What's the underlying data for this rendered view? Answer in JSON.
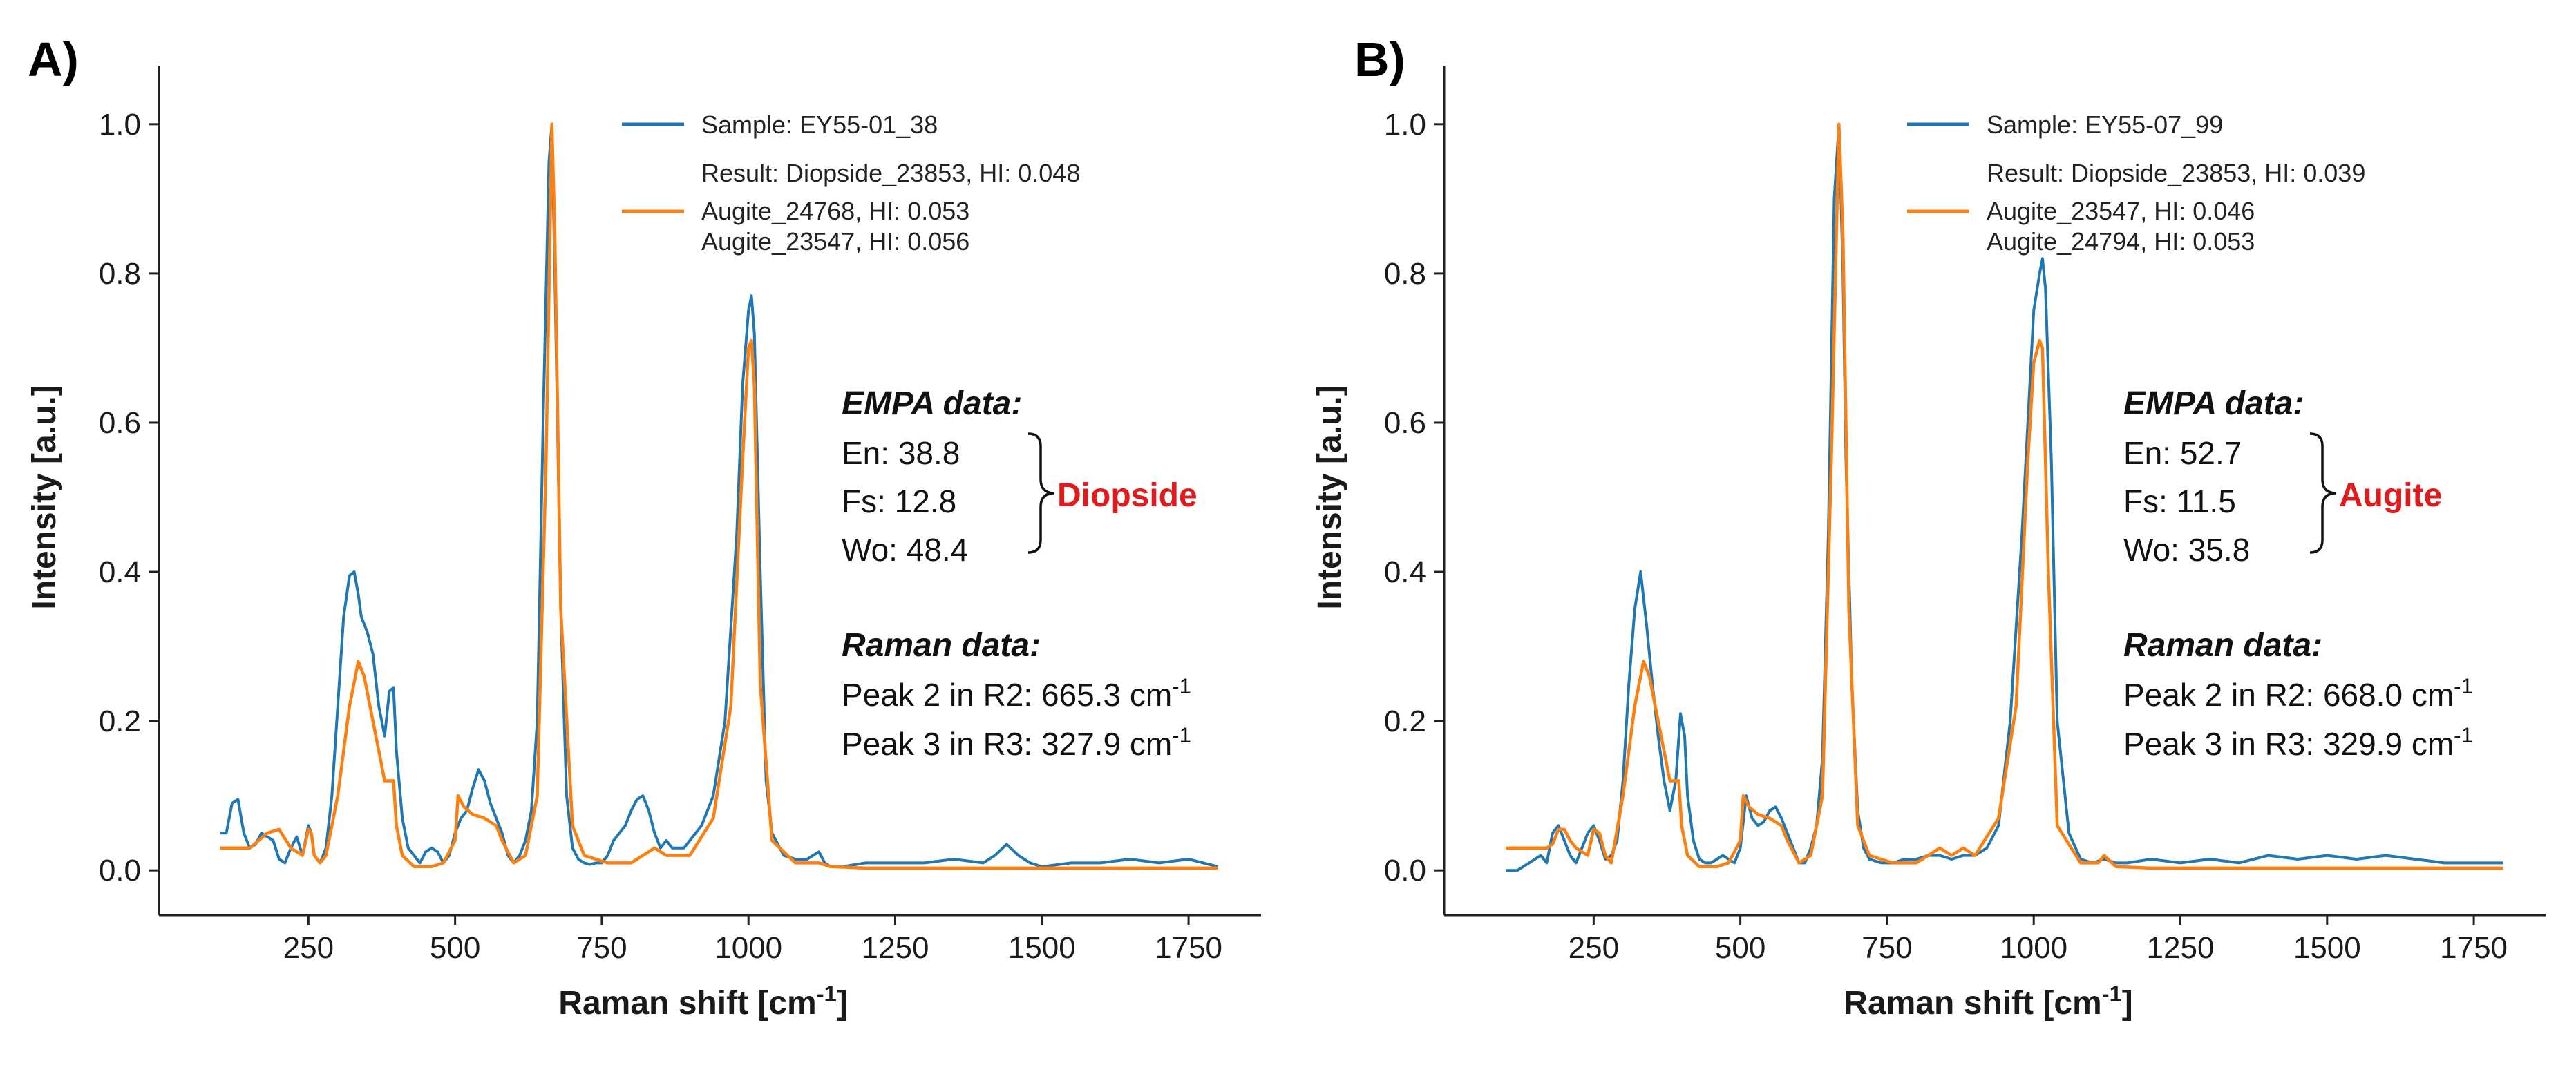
{
  "colors": {
    "sample": "#1f77b4",
    "reference": "#ff7f0e",
    "mineral_label": "#e31a1c"
  },
  "chart_data": [
    {
      "type": "line",
      "panel_label": "A)",
      "xlabel": "Raman shift [cm",
      "xlabel_sup": "-1",
      "xlabel_end": "]",
      "ylabel": "Intensity [a.u.]",
      "xlim": [
        60,
        1850
      ],
      "ylim": [
        -0.06,
        1.06
      ],
      "xticks": [
        250,
        500,
        750,
        1000,
        1250,
        1500,
        1750
      ],
      "xtick_labels": [
        "250",
        "500",
        "750",
        "1000",
        "1250",
        "1500",
        "1750"
      ],
      "yticks": [
        0.0,
        0.2,
        0.4,
        0.6,
        0.8,
        1.0
      ],
      "ytick_labels": [
        "0.0",
        "0.2",
        "0.4",
        "0.6",
        "0.8",
        "1.0"
      ],
      "legend": {
        "sample": "Sample: EY55-01_38",
        "result_line1": "Result: Diopside_23853, HI: 0.048",
        "result_line2": "Augite_24768, HI: 0.053",
        "result_line3": "Augite_23547, HI: 0.056"
      },
      "annotation": {
        "empa_title": "EMPA data:",
        "en": "En:  38.8",
        "fs": "Fs:  12.8",
        "wo": "Wo: 48.4",
        "mineral": "Diopside",
        "raman_title": "Raman data:",
        "peak2": "Peak 2 in R2: 665.3 cm",
        "peak3": "Peak 3 in R3: 327.9 cm",
        "unit_sup": "-1"
      },
      "series": [
        {
          "name": "Sample: EY55-01_38",
          "color_key": "sample",
          "x": [
            100,
            110,
            120,
            130,
            140,
            150,
            160,
            170,
            180,
            190,
            200,
            210,
            220,
            230,
            240,
            250,
            255,
            260,
            270,
            280,
            290,
            300,
            310,
            320,
            328,
            335,
            340,
            350,
            360,
            370,
            380,
            388,
            395,
            400,
            410,
            420,
            430,
            440,
            450,
            460,
            470,
            480,
            490,
            500,
            510,
            520,
            530,
            540,
            550,
            560,
            570,
            580,
            590,
            600,
            610,
            620,
            630,
            640,
            650,
            660,
            665,
            670,
            680,
            690,
            700,
            710,
            720,
            730,
            740,
            750,
            760,
            770,
            780,
            790,
            800,
            810,
            820,
            830,
            840,
            850,
            860,
            870,
            880,
            890,
            900,
            920,
            940,
            960,
            980,
            990,
            1000,
            1005,
            1010,
            1020,
            1030,
            1040,
            1060,
            1080,
            1100,
            1110,
            1120,
            1130,
            1140,
            1160,
            1200,
            1250,
            1300,
            1350,
            1400,
            1420,
            1440,
            1460,
            1480,
            1500,
            1550,
            1600,
            1650,
            1700,
            1750,
            1800
          ],
          "y": [
            0.05,
            0.05,
            0.09,
            0.095,
            0.05,
            0.03,
            0.035,
            0.05,
            0.045,
            0.04,
            0.015,
            0.01,
            0.03,
            0.045,
            0.02,
            0.06,
            0.05,
            0.02,
            0.01,
            0.03,
            0.1,
            0.22,
            0.34,
            0.395,
            0.4,
            0.37,
            0.34,
            0.32,
            0.29,
            0.22,
            0.18,
            0.24,
            0.245,
            0.16,
            0.07,
            0.03,
            0.02,
            0.01,
            0.025,
            0.03,
            0.025,
            0.01,
            0.02,
            0.05,
            0.07,
            0.08,
            0.11,
            0.135,
            0.12,
            0.09,
            0.07,
            0.05,
            0.02,
            0.01,
            0.02,
            0.04,
            0.08,
            0.2,
            0.6,
            0.95,
            1.0,
            0.8,
            0.35,
            0.1,
            0.03,
            0.015,
            0.01,
            0.008,
            0.01,
            0.01,
            0.02,
            0.04,
            0.05,
            0.06,
            0.08,
            0.095,
            0.1,
            0.08,
            0.05,
            0.03,
            0.04,
            0.03,
            0.03,
            0.03,
            0.04,
            0.06,
            0.1,
            0.2,
            0.45,
            0.65,
            0.75,
            0.77,
            0.72,
            0.4,
            0.12,
            0.05,
            0.02,
            0.015,
            0.015,
            0.02,
            0.025,
            0.01,
            0.005,
            0.005,
            0.01,
            0.01,
            0.01,
            0.015,
            0.01,
            0.02,
            0.035,
            0.02,
            0.01,
            0.005,
            0.01,
            0.01,
            0.015,
            0.01,
            0.015,
            0.005
          ]
        },
        {
          "name": "Diopside_23853",
          "color_key": "reference",
          "x": [
            100,
            150,
            180,
            200,
            220,
            240,
            250,
            255,
            260,
            270,
            280,
            300,
            320,
            335,
            345,
            360,
            380,
            395,
            400,
            410,
            430,
            460,
            480,
            500,
            505,
            515,
            530,
            550,
            570,
            580,
            600,
            620,
            640,
            655,
            665,
            670,
            680,
            700,
            720,
            760,
            800,
            820,
            840,
            860,
            880,
            900,
            940,
            970,
            990,
            1000,
            1005,
            1010,
            1020,
            1040,
            1080,
            1120,
            1140,
            1200,
            1400,
            1800
          ],
          "y": [
            0.03,
            0.03,
            0.05,
            0.055,
            0.03,
            0.02,
            0.055,
            0.05,
            0.02,
            0.01,
            0.02,
            0.1,
            0.22,
            0.28,
            0.26,
            0.2,
            0.12,
            0.12,
            0.06,
            0.02,
            0.005,
            0.005,
            0.01,
            0.04,
            0.1,
            0.085,
            0.075,
            0.07,
            0.06,
            0.04,
            0.01,
            0.02,
            0.1,
            0.55,
            1.0,
            0.85,
            0.35,
            0.06,
            0.02,
            0.01,
            0.01,
            0.02,
            0.03,
            0.02,
            0.02,
            0.02,
            0.07,
            0.22,
            0.55,
            0.7,
            0.71,
            0.65,
            0.25,
            0.04,
            0.01,
            0.01,
            0.005,
            0.003,
            0.003,
            0.003
          ]
        }
      ]
    },
    {
      "type": "line",
      "panel_label": "B)",
      "xlabel": "Raman shift [cm",
      "xlabel_sup": "-1",
      "xlabel_end": "]",
      "ylabel": "Intensity [a.u.]",
      "xlim": [
        60,
        1850
      ],
      "ylim": [
        -0.06,
        1.06
      ],
      "xticks": [
        250,
        500,
        750,
        1000,
        1250,
        1500,
        1750
      ],
      "xtick_labels": [
        "250",
        "500",
        "750",
        "1000",
        "1250",
        "1500",
        "1750"
      ],
      "yticks": [
        0.0,
        0.2,
        0.4,
        0.6,
        0.8,
        1.0
      ],
      "ytick_labels": [
        "0.0",
        "0.2",
        "0.4",
        "0.6",
        "0.8",
        "1.0"
      ],
      "legend": {
        "sample": "Sample: EY55-07_99",
        "result_line1": "Result: Diopside_23853, HI: 0.039",
        "result_line2": "Augite_23547, HI: 0.046",
        "result_line3": "Augite_24794, HI: 0.053"
      },
      "annotation": {
        "empa_title": "EMPA data:",
        "en": "En:  52.7",
        "fs": "Fs:  11.5",
        "wo": "Wo: 35.8",
        "mineral": "Augite",
        "raman_title": "Raman data:",
        "peak2": "Peak 2 in R2: 668.0 cm",
        "peak3": "Peak 3 in R3: 329.9 cm",
        "unit_sup": "-1"
      },
      "series": [
        {
          "name": "Sample: EY55-07_99",
          "color_key": "sample",
          "x": [
            100,
            120,
            140,
            160,
            170,
            180,
            190,
            200,
            210,
            220,
            230,
            240,
            250,
            260,
            270,
            280,
            290,
            300,
            310,
            320,
            330,
            340,
            350,
            360,
            370,
            380,
            390,
            398,
            405,
            410,
            420,
            430,
            440,
            450,
            460,
            470,
            480,
            490,
            500,
            510,
            520,
            530,
            540,
            550,
            560,
            570,
            580,
            590,
            600,
            610,
            620,
            630,
            640,
            650,
            660,
            668,
            675,
            680,
            690,
            700,
            710,
            720,
            740,
            760,
            780,
            800,
            820,
            840,
            860,
            880,
            900,
            920,
            940,
            960,
            980,
            990,
            1000,
            1010,
            1015,
            1020,
            1030,
            1040,
            1060,
            1080,
            1100,
            1120,
            1140,
            1160,
            1200,
            1250,
            1300,
            1350,
            1400,
            1450,
            1500,
            1550,
            1600,
            1650,
            1700,
            1750,
            1800
          ],
          "y": [
            0.0,
            0.0,
            0.01,
            0.02,
            0.01,
            0.05,
            0.06,
            0.04,
            0.02,
            0.01,
            0.03,
            0.05,
            0.06,
            0.04,
            0.015,
            0.02,
            0.04,
            0.12,
            0.25,
            0.35,
            0.4,
            0.33,
            0.25,
            0.18,
            0.12,
            0.08,
            0.12,
            0.21,
            0.18,
            0.1,
            0.04,
            0.015,
            0.01,
            0.01,
            0.015,
            0.02,
            0.015,
            0.01,
            0.03,
            0.1,
            0.07,
            0.06,
            0.065,
            0.08,
            0.085,
            0.07,
            0.05,
            0.03,
            0.01,
            0.01,
            0.03,
            0.06,
            0.15,
            0.45,
            0.9,
            1.0,
            0.8,
            0.55,
            0.25,
            0.08,
            0.03,
            0.015,
            0.01,
            0.01,
            0.015,
            0.015,
            0.02,
            0.02,
            0.015,
            0.02,
            0.02,
            0.03,
            0.06,
            0.2,
            0.45,
            0.6,
            0.75,
            0.8,
            0.82,
            0.78,
            0.55,
            0.2,
            0.05,
            0.015,
            0.01,
            0.015,
            0.01,
            0.01,
            0.015,
            0.01,
            0.015,
            0.01,
            0.02,
            0.015,
            0.02,
            0.015,
            0.02,
            0.015,
            0.01,
            0.01,
            0.01
          ]
        },
        {
          "name": "Diopside_23853",
          "color_key": "reference",
          "x": [
            100,
            150,
            170,
            180,
            190,
            200,
            210,
            220,
            240,
            250,
            260,
            270,
            280,
            300,
            320,
            335,
            345,
            360,
            380,
            395,
            400,
            410,
            430,
            460,
            480,
            500,
            505,
            515,
            530,
            550,
            570,
            580,
            600,
            620,
            640,
            655,
            668,
            675,
            685,
            700,
            720,
            760,
            800,
            820,
            840,
            860,
            880,
            900,
            940,
            970,
            990,
            1000,
            1010,
            1015,
            1025,
            1040,
            1080,
            1110,
            1120,
            1140,
            1200,
            1400,
            1800
          ],
          "y": [
            0.03,
            0.03,
            0.03,
            0.035,
            0.055,
            0.055,
            0.04,
            0.03,
            0.02,
            0.055,
            0.05,
            0.02,
            0.01,
            0.1,
            0.22,
            0.28,
            0.26,
            0.2,
            0.12,
            0.12,
            0.06,
            0.02,
            0.005,
            0.005,
            0.01,
            0.04,
            0.1,
            0.085,
            0.075,
            0.07,
            0.06,
            0.04,
            0.01,
            0.02,
            0.1,
            0.55,
            1.0,
            0.85,
            0.35,
            0.06,
            0.02,
            0.01,
            0.01,
            0.02,
            0.03,
            0.02,
            0.03,
            0.02,
            0.07,
            0.22,
            0.55,
            0.68,
            0.71,
            0.7,
            0.4,
            0.06,
            0.01,
            0.01,
            0.02,
            0.005,
            0.003,
            0.003,
            0.003
          ]
        }
      ]
    }
  ]
}
